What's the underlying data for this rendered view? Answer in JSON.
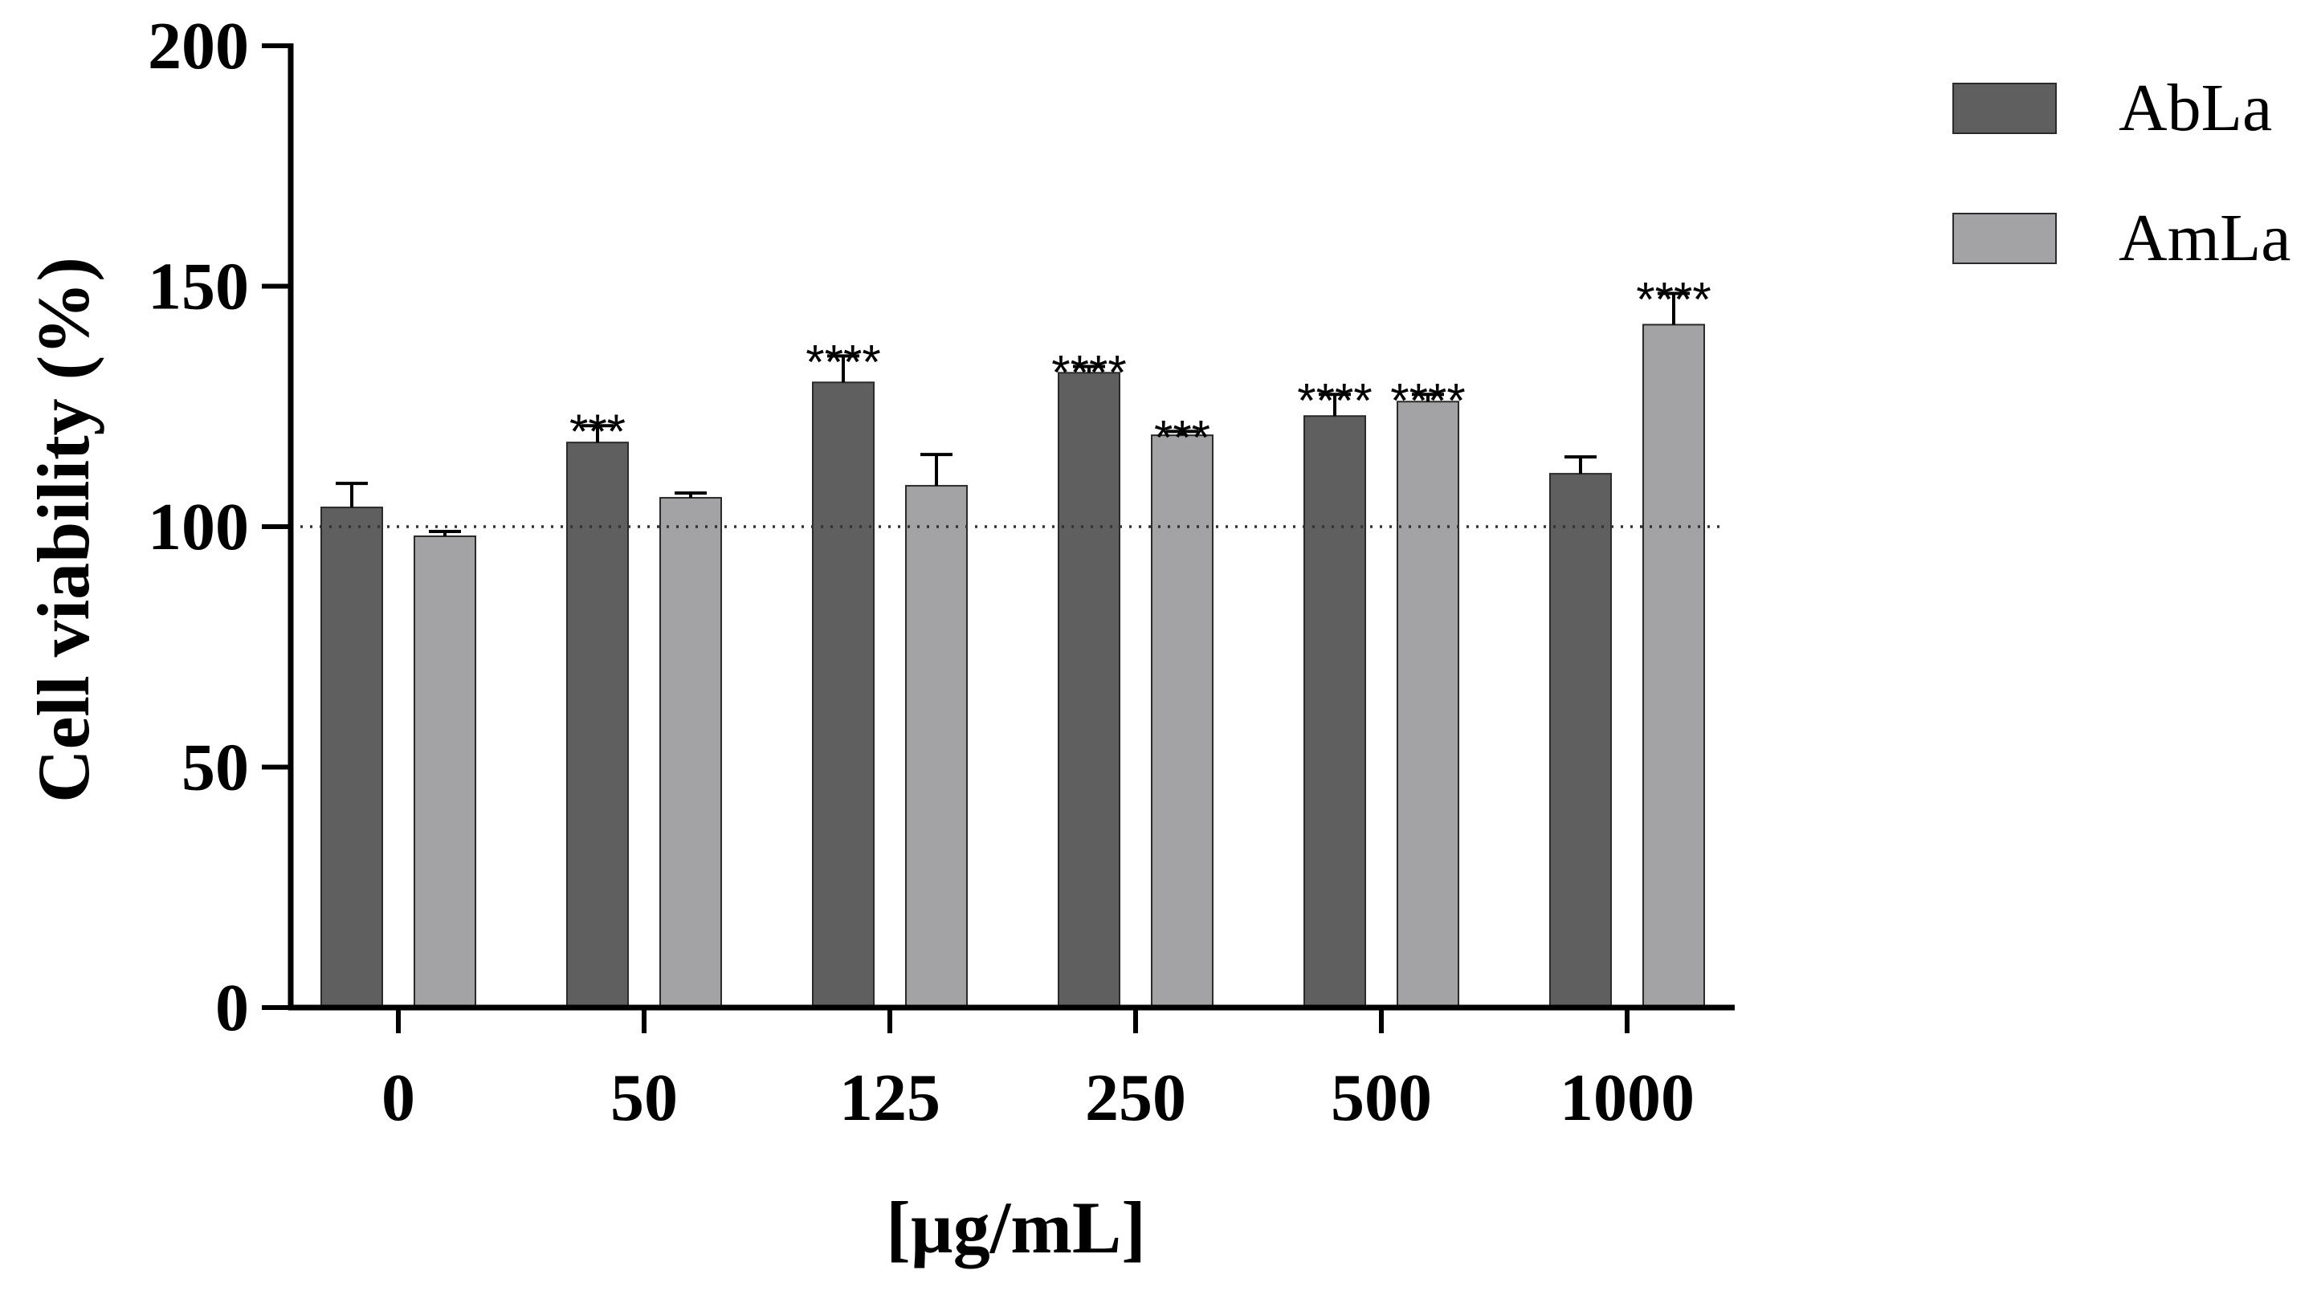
{
  "chart_data": {
    "type": "bar",
    "title": "",
    "xlabel": "[µg/mL]",
    "ylabel": "Cell viability (%)",
    "ylim": [
      0,
      200
    ],
    "yticks": [
      0,
      50,
      100,
      150,
      200
    ],
    "categories": [
      "0",
      "50",
      "125",
      "250",
      "500",
      "1000"
    ],
    "reference_line": 100,
    "legend_position": "top-right",
    "series": [
      {
        "name": "AbLa",
        "color": "#5f5f5f",
        "values": [
          104,
          117.5,
          130,
          132,
          123,
          111
        ],
        "errors": [
          5,
          3.5,
          5.5,
          1.3,
          4.5,
          3.5
        ],
        "significance": [
          "",
          "***",
          "****",
          "****",
          "****",
          ""
        ]
      },
      {
        "name": "AmLa",
        "color": "#a3a3a6",
        "values": [
          98,
          106,
          108.5,
          119,
          126,
          142
        ],
        "errors": [
          1,
          1,
          6.5,
          0.8,
          1.5,
          6.5
        ],
        "significance": [
          "",
          "",
          "",
          "***",
          "****",
          "****"
        ]
      }
    ]
  }
}
